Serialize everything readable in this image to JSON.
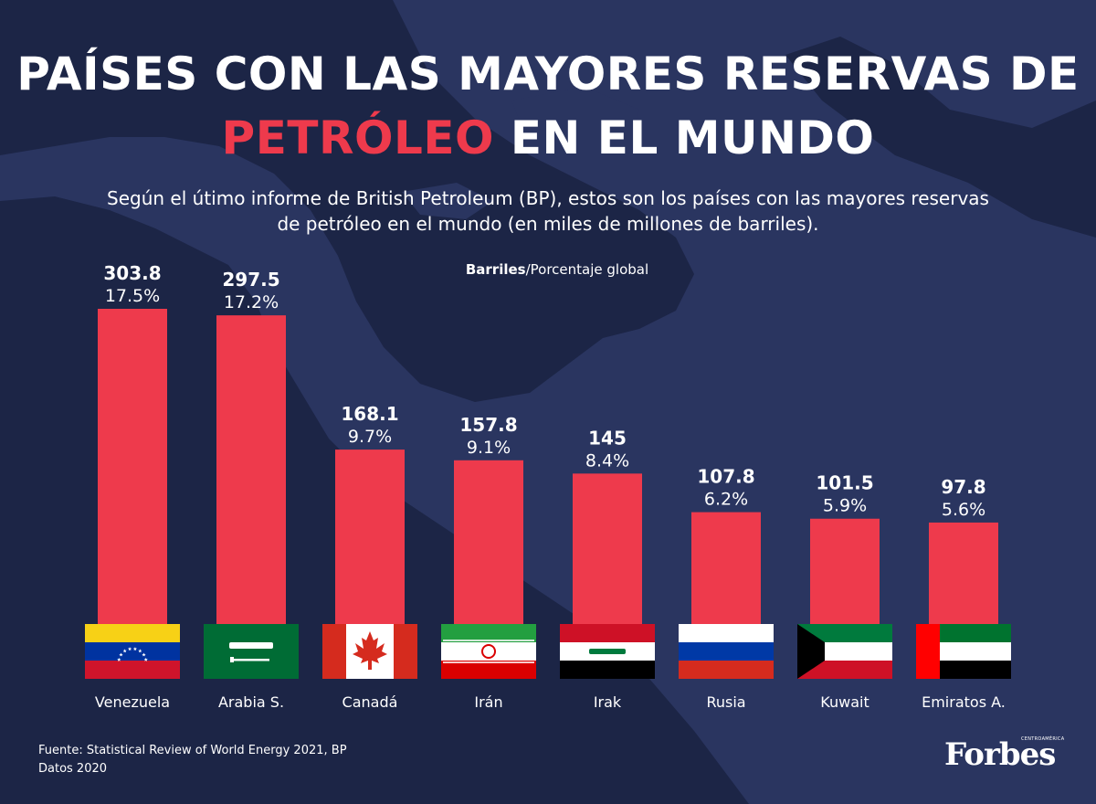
{
  "header": {
    "title_line1": "PAÍSES CON LAS MAYORES RESERVAS DE",
    "title_line2_accent": "PETRÓLEO",
    "title_line2_rest": " EN EL MUNDO",
    "subtitle_line1": "Según el útimo informe de British Petroleum (BP), estos son los países con las mayores reservas",
    "subtitle_line2": "de petróleo en el mundo (en miles de millones de barriles).",
    "legend_bold": "Barriles",
    "legend_rest": "/Porcentaje global"
  },
  "colors": {
    "background": "#1c2546",
    "map": "#2a3560",
    "bar": "#ee3a4c",
    "accent": "#ee3a4c"
  },
  "chart_data": {
    "type": "bar",
    "title": "PAÍSES CON LAS MAYORES RESERVAS DE PETRÓLEO EN EL MUNDO",
    "categories": [
      "Venezuela",
      "Arabia S.",
      "Canadá",
      "Irán",
      "Irak",
      "Rusia",
      "Kuwait",
      "Emiratos A."
    ],
    "values": [
      303.8,
      297.5,
      168.1,
      157.8,
      145,
      107.8,
      101.5,
      97.8
    ],
    "value_labels": [
      "303.8",
      "297.5",
      "168.1",
      "157.8",
      "145",
      "107.8",
      "101.5",
      "97.8"
    ],
    "percent_labels": [
      "17.5%",
      "17.2%",
      "9.7%",
      "9.1%",
      "8.4%",
      "6.2%",
      "5.9%",
      "5.6%"
    ],
    "flags": [
      "venezuela-flag",
      "saudi-arabia-flag",
      "canada-flag",
      "iran-flag",
      "iraq-flag",
      "russia-flag",
      "kuwait-flag",
      "uae-flag"
    ],
    "ylim": [
      0,
      303.8
    ],
    "grid": false
  },
  "footer": {
    "source": "Fuente: Statistical Review of World Energy 2021, BP",
    "year": "Datos 2020",
    "brand": "Forbes",
    "brand_sub": "CENTROAMÉRICA"
  }
}
